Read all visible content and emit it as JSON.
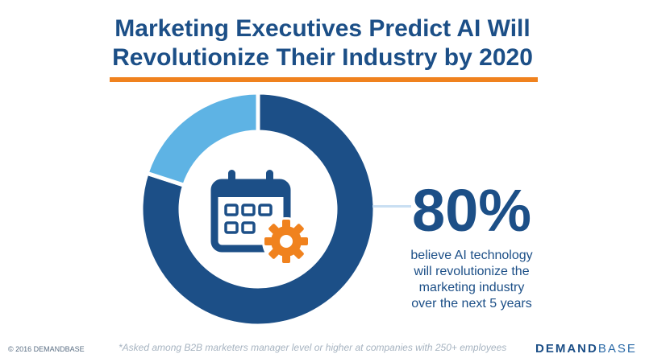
{
  "title": {
    "line1": "Marketing Executives Predict AI Will",
    "line2": "Revolutionize Their Industry by 2020"
  },
  "chart_data": {
    "type": "pie",
    "slices": [
      {
        "value": 80,
        "color": "#1c4f87"
      },
      {
        "value": 20,
        "color": "#5eb3e4"
      }
    ]
  },
  "callout": {
    "value": "80%",
    "lines": [
      "believe AI technology",
      "will revolutionize the",
      "marketing industry",
      "over the next 5 years"
    ]
  },
  "icons": {
    "center": "calendar-gear-icon",
    "calendar_color": "#1c4f87",
    "gear_color": "#f0821e"
  },
  "footer": {
    "copyright": "© 2016 DEMANDBASE",
    "footnote": "*Asked among B2B marketers manager level or higher at companies with 250+ employees",
    "logo_bold": "DEMAND",
    "logo_rest": "BASE"
  },
  "colors": {
    "title": "#1c4f87",
    "accent": "#f0821e",
    "major": "#1c4f87",
    "minor": "#5eb3e4"
  }
}
